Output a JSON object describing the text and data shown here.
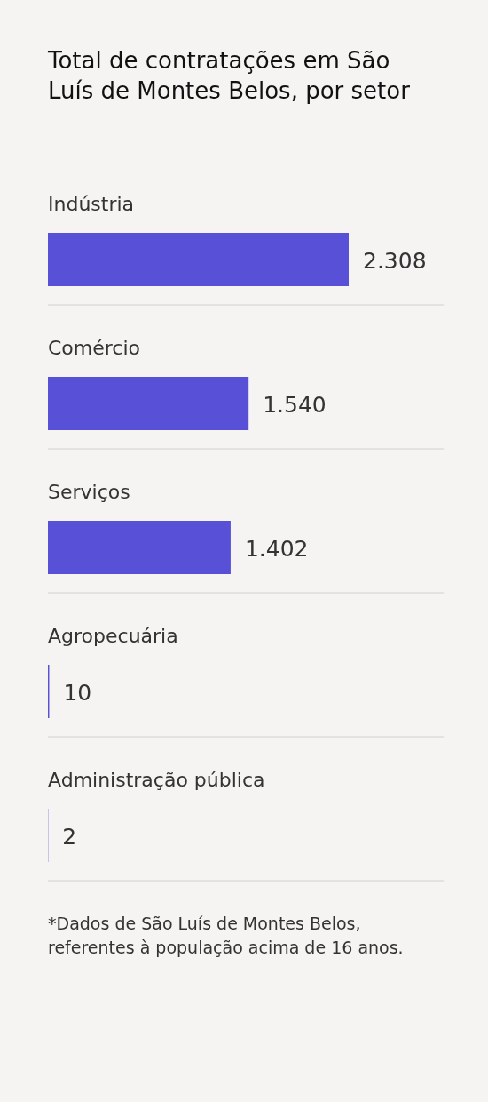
{
  "chart_data": {
    "type": "bar",
    "orientation": "horizontal",
    "title": "Total de contratações em São Luís de Montes Belos, por setor",
    "categories": [
      "Indústria",
      "Comércio",
      "Serviços",
      "Agropecuária",
      "Administração pública"
    ],
    "values": [
      2308,
      1540,
      1402,
      10,
      2
    ],
    "value_labels": [
      "2.308",
      "1.540",
      "1.402",
      "10",
      "2"
    ],
    "color": "#5850d6",
    "grid": "y",
    "annotations": [
      "*Dados de São Luís de Montes Belos, referentes à população acima de 16 anos."
    ]
  }
}
